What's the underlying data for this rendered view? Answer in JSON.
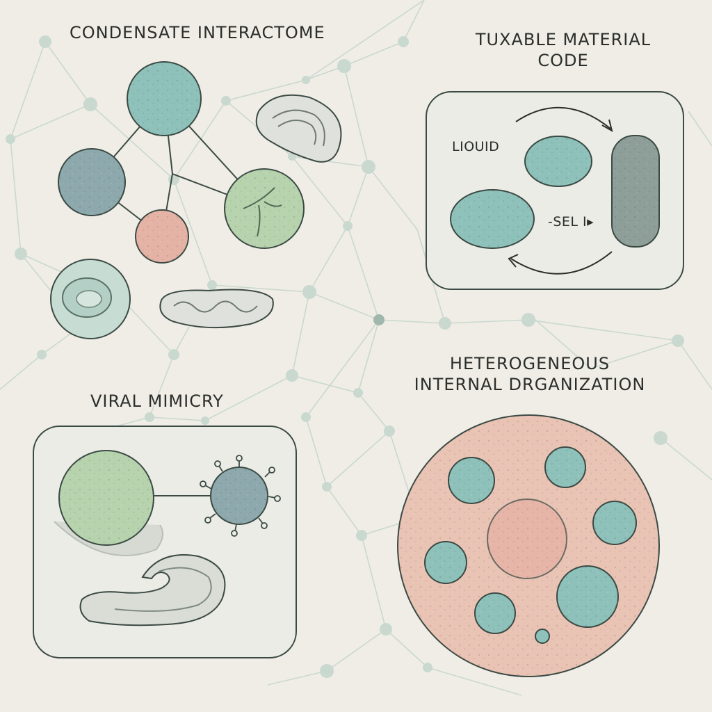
{
  "colors": {
    "background": "#efede6",
    "network": "#b9cbc2",
    "teal": "#8fc1bb",
    "green": "#b6d3ae",
    "blue_gray": "#8aa4a7",
    "pink": "#e8b7a7",
    "gray": "#d9dcd6",
    "outline": "#3b4a44"
  },
  "labels": {
    "condensate_interactome": "CONDENSATE INTERACTOME",
    "tunable_material_line1": "TUXABLE MATERIAL",
    "tunable_material_line2": "CODE",
    "liquid": "LIOUID",
    "gel": "-SEL I▸",
    "viral_mimicry": "VIRAL MIMICRY",
    "heterogeneous_line1": "HETEROGENEOUS",
    "heterogeneous_line2": "INTERNAL DRGANIZATION"
  },
  "icons": {
    "transition_arrow_top": "curved-arrow-right-icon",
    "transition_arrow_bottom": "curved-arrow-left-icon",
    "virus": "virus-icon"
  }
}
